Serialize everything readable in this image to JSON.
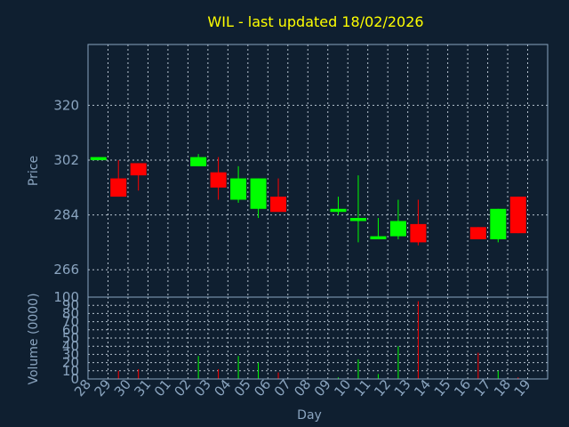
{
  "chart_data": [
    {
      "type": "candlestick",
      "title": "WIL - last updated 18/02/2026",
      "ylabel": "Price",
      "ylim": [
        257,
        340
      ],
      "yticks": [
        266,
        284,
        302,
        320
      ],
      "x": [
        "28",
        "29",
        "30",
        "31",
        "01",
        "02",
        "03",
        "04",
        "05",
        "06",
        "07",
        "08",
        "09",
        "10",
        "11",
        "12",
        "13",
        "14",
        "15",
        "16",
        "17",
        "18",
        "19"
      ],
      "candles": [
        {
          "day": "28",
          "open": 302,
          "high": 303,
          "low": 302,
          "close": 303
        },
        {
          "day": "29",
          "open": 296,
          "high": 302,
          "low": 290,
          "close": 290
        },
        {
          "day": "30",
          "open": 301,
          "high": 301,
          "low": 292,
          "close": 297
        },
        {
          "day": "02",
          "open": 300,
          "high": 304,
          "low": 300,
          "close": 303
        },
        {
          "day": "03",
          "open": 298,
          "high": 303,
          "low": 289,
          "close": 293
        },
        {
          "day": "04",
          "open": 289,
          "high": 300,
          "low": 288,
          "close": 296
        },
        {
          "day": "05",
          "open": 286,
          "high": 296,
          "low": 283,
          "close": 296
        },
        {
          "day": "06",
          "open": 290,
          "high": 296,
          "low": 285,
          "close": 285
        },
        {
          "day": "09",
          "open": 285,
          "high": 290,
          "low": 284,
          "close": 286
        },
        {
          "day": "10",
          "open": 282,
          "high": 297,
          "low": 275,
          "close": 283
        },
        {
          "day": "11",
          "open": 276,
          "high": 283,
          "low": 276,
          "close": 277
        },
        {
          "day": "12",
          "open": 277,
          "high": 289,
          "low": 276,
          "close": 282
        },
        {
          "day": "13",
          "open": 281,
          "high": 289,
          "low": 274,
          "close": 275
        },
        {
          "day": "16",
          "open": 280,
          "high": 280,
          "low": 276,
          "close": 276
        },
        {
          "day": "17",
          "open": 276,
          "high": 286,
          "low": 275,
          "close": 286
        },
        {
          "day": "18",
          "open": 290,
          "high": 290,
          "low": 278,
          "close": 278
        }
      ],
      "colors": {
        "up": "#00ff00",
        "down": "#ff0000"
      }
    },
    {
      "type": "bar",
      "ylabel": "Volume (0000)",
      "xlabel": "Day",
      "ylim": [
        0,
        100
      ],
      "yticks": [
        0,
        10,
        20,
        30,
        40,
        50,
        60,
        70,
        80,
        90,
        100
      ],
      "x": [
        "28",
        "29",
        "30",
        "31",
        "01",
        "02",
        "03",
        "04",
        "05",
        "06",
        "07",
        "08",
        "09",
        "10",
        "11",
        "12",
        "13",
        "14",
        "15",
        "16",
        "17",
        "18",
        "19"
      ],
      "volumes": [
        {
          "day": "29",
          "value": 10,
          "color": "#ff0000"
        },
        {
          "day": "30",
          "value": 12,
          "color": "#ff0000"
        },
        {
          "day": "02",
          "value": 28,
          "color": "#00ff00"
        },
        {
          "day": "03",
          "value": 12,
          "color": "#ff0000"
        },
        {
          "day": "04",
          "value": 28,
          "color": "#00ff00"
        },
        {
          "day": "05",
          "value": 20,
          "color": "#00ff00"
        },
        {
          "day": "06",
          "value": 8,
          "color": "#ff0000"
        },
        {
          "day": "09",
          "value": 2,
          "color": "#00ff00"
        },
        {
          "day": "10",
          "value": 24,
          "color": "#00ff00"
        },
        {
          "day": "11",
          "value": 6,
          "color": "#00ff00"
        },
        {
          "day": "12",
          "value": 40,
          "color": "#00ff00"
        },
        {
          "day": "13",
          "value": 95,
          "color": "#ff0000"
        },
        {
          "day": "16",
          "value": 32,
          "color": "#ff0000"
        },
        {
          "day": "17",
          "value": 10,
          "color": "#00ff00"
        },
        {
          "day": "18",
          "value": 2,
          "color": "#ff0000"
        }
      ]
    }
  ]
}
